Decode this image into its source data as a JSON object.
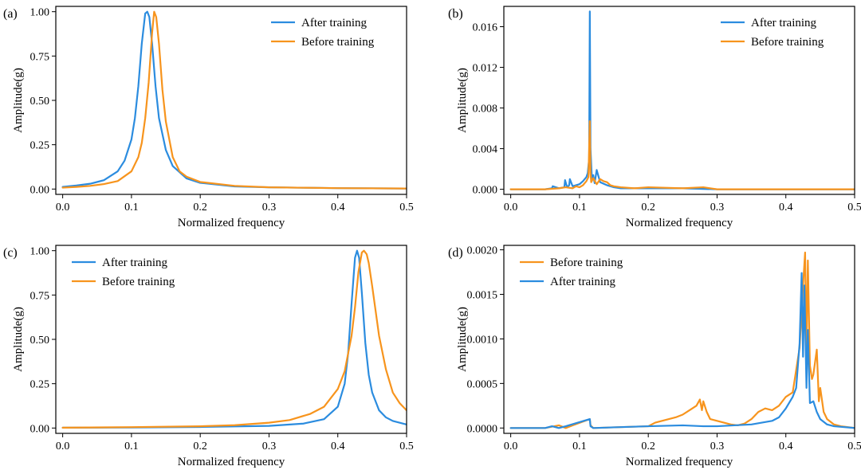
{
  "chart_data": [
    {
      "panel": "(a)",
      "type": "line",
      "xlabel": "Normalized frequency",
      "ylabel": "Amplitude(g)",
      "xlim": [
        -0.01,
        0.5
      ],
      "ylim": [
        -0.03,
        1.03
      ],
      "xticks": [
        0.0,
        0.1,
        0.2,
        0.3,
        0.4,
        0.5
      ],
      "xtick_labels": [
        "0.0",
        "0.1",
        "0.2",
        "0.3",
        "0.4",
        "0.5"
      ],
      "yticks": [
        0.0,
        0.25,
        0.5,
        0.75,
        1.0
      ],
      "ytick_labels": [
        "0.00",
        "0.25",
        "0.50",
        "0.75",
        "1.00"
      ],
      "legend_position": "top-right",
      "series": [
        {
          "name": "After training",
          "color": "#2b8cdf",
          "x": [
            0.0,
            0.02,
            0.04,
            0.06,
            0.08,
            0.09,
            0.1,
            0.105,
            0.11,
            0.115,
            0.12,
            0.123,
            0.126,
            0.13,
            0.135,
            0.14,
            0.15,
            0.16,
            0.18,
            0.2,
            0.25,
            0.3,
            0.4,
            0.5
          ],
          "y": [
            0.012,
            0.02,
            0.03,
            0.05,
            0.1,
            0.16,
            0.28,
            0.4,
            0.58,
            0.82,
            0.99,
            1.0,
            0.97,
            0.82,
            0.58,
            0.4,
            0.22,
            0.13,
            0.06,
            0.035,
            0.015,
            0.01,
            0.005,
            0.003
          ]
        },
        {
          "name": "Before training",
          "color": "#f7941d",
          "x": [
            0.0,
            0.02,
            0.04,
            0.06,
            0.08,
            0.1,
            0.11,
            0.115,
            0.12,
            0.125,
            0.13,
            0.133,
            0.136,
            0.14,
            0.145,
            0.15,
            0.16,
            0.17,
            0.18,
            0.2,
            0.25,
            0.3,
            0.4,
            0.5
          ],
          "y": [
            0.008,
            0.012,
            0.018,
            0.028,
            0.045,
            0.1,
            0.18,
            0.26,
            0.4,
            0.6,
            0.88,
            1.0,
            0.97,
            0.82,
            0.56,
            0.38,
            0.18,
            0.1,
            0.07,
            0.04,
            0.018,
            0.01,
            0.005,
            0.003
          ]
        }
      ]
    },
    {
      "panel": "(b)",
      "type": "line",
      "xlabel": "Normalized frequency",
      "ylabel": "Amplitude(g)",
      "xlim": [
        -0.01,
        0.5
      ],
      "ylim": [
        -0.0005,
        0.018
      ],
      "xticks": [
        0.0,
        0.1,
        0.2,
        0.3,
        0.4,
        0.5
      ],
      "xtick_labels": [
        "0.0",
        "0.1",
        "0.2",
        "0.3",
        "0.4",
        "0.5"
      ],
      "yticks": [
        0.0,
        0.004,
        0.008,
        0.012,
        0.016
      ],
      "ytick_labels": [
        "0.000",
        "0.004",
        "0.008",
        "0.012",
        "0.016"
      ],
      "legend_position": "top-right",
      "series": [
        {
          "name": "After training",
          "color": "#2b8cdf",
          "x": [
            0.0,
            0.05,
            0.06,
            0.061,
            0.07,
            0.078,
            0.079,
            0.082,
            0.085,
            0.086,
            0.09,
            0.1,
            0.105,
            0.11,
            0.112,
            0.114,
            0.115,
            0.116,
            0.118,
            0.12,
            0.122,
            0.125,
            0.13,
            0.14,
            0.15,
            0.16,
            0.2,
            0.25,
            0.3,
            0.4,
            0.5
          ],
          "y": [
            0.0,
            0.0,
            0.0001,
            0.0003,
            0.0001,
            0.0002,
            0.0009,
            0.0002,
            0.0004,
            0.001,
            0.0003,
            0.0005,
            0.0008,
            0.0012,
            0.0016,
            0.003,
            0.0175,
            0.004,
            0.001,
            0.0014,
            0.0006,
            0.0019,
            0.0007,
            0.0004,
            0.0002,
            0.0001,
            0.0001,
            0.0001,
            0.0,
            0.0,
            0.0
          ]
        },
        {
          "name": "Before training",
          "color": "#f7941d",
          "x": [
            0.0,
            0.05,
            0.07,
            0.08,
            0.09,
            0.095,
            0.1,
            0.105,
            0.11,
            0.113,
            0.115,
            0.116,
            0.117,
            0.12,
            0.125,
            0.13,
            0.135,
            0.14,
            0.145,
            0.15,
            0.16,
            0.18,
            0.2,
            0.25,
            0.28,
            0.3,
            0.4,
            0.5
          ],
          "y": [
            0.0,
            0.0,
            0.0001,
            0.0002,
            0.0001,
            0.0003,
            0.0002,
            0.0004,
            0.0008,
            0.0012,
            0.0067,
            0.0016,
            0.0007,
            0.0011,
            0.0005,
            0.001,
            0.0008,
            0.0007,
            0.0004,
            0.0003,
            0.0002,
            0.0001,
            0.0002,
            0.0001,
            0.0002,
            0.0,
            0.0,
            0.0
          ]
        }
      ]
    },
    {
      "panel": "(c)",
      "type": "line",
      "xlabel": "Normalized frequency",
      "ylabel": "Amplitude(g)",
      "xlim": [
        -0.01,
        0.5
      ],
      "ylim": [
        -0.03,
        1.03
      ],
      "xticks": [
        0.0,
        0.1,
        0.2,
        0.3,
        0.4,
        0.5
      ],
      "xtick_labels": [
        "0.0",
        "0.1",
        "0.2",
        "0.3",
        "0.4",
        "0.5"
      ],
      "yticks": [
        0.0,
        0.25,
        0.5,
        0.75,
        1.0
      ],
      "ytick_labels": [
        "0.00",
        "0.25",
        "0.50",
        "0.75",
        "1.00"
      ],
      "legend_position": "top-left",
      "series": [
        {
          "name": "After training",
          "color": "#2b8cdf",
          "x": [
            0.0,
            0.1,
            0.2,
            0.3,
            0.35,
            0.38,
            0.4,
            0.41,
            0.415,
            0.42,
            0.425,
            0.428,
            0.431,
            0.435,
            0.44,
            0.445,
            0.45,
            0.46,
            0.47,
            0.48,
            0.5
          ],
          "y": [
            0.002,
            0.003,
            0.006,
            0.012,
            0.025,
            0.05,
            0.12,
            0.25,
            0.42,
            0.7,
            0.96,
            1.0,
            0.96,
            0.76,
            0.48,
            0.3,
            0.2,
            0.1,
            0.06,
            0.04,
            0.02
          ]
        },
        {
          "name": "Before training",
          "color": "#f7941d",
          "x": [
            0.0,
            0.1,
            0.2,
            0.25,
            0.3,
            0.33,
            0.36,
            0.38,
            0.4,
            0.41,
            0.42,
            0.425,
            0.43,
            0.435,
            0.438,
            0.442,
            0.445,
            0.45,
            0.46,
            0.47,
            0.48,
            0.49,
            0.5
          ],
          "y": [
            0.002,
            0.005,
            0.01,
            0.016,
            0.03,
            0.045,
            0.08,
            0.12,
            0.22,
            0.32,
            0.52,
            0.68,
            0.88,
            0.99,
            1.0,
            0.98,
            0.93,
            0.8,
            0.52,
            0.33,
            0.2,
            0.14,
            0.1
          ]
        }
      ]
    },
    {
      "panel": "(d)",
      "type": "line",
      "xlabel": "Normalized frequency",
      "ylabel": "Amplitude(g)",
      "xlim": [
        -0.01,
        0.5
      ],
      "ylim": [
        -6e-05,
        0.00205
      ],
      "xticks": [
        0.0,
        0.1,
        0.2,
        0.3,
        0.4,
        0.5
      ],
      "xtick_labels": [
        "0.0",
        "0.1",
        "0.2",
        "0.3",
        "0.4",
        "0.5"
      ],
      "yticks": [
        0.0,
        0.0005,
        0.001,
        0.0015,
        0.002
      ],
      "ytick_labels": [
        "0.0000",
        "0.0005",
        "0.0010",
        "0.0015",
        "0.0020"
      ],
      "legend_position": "top-left",
      "series": [
        {
          "name": "Before training",
          "color": "#f7941d",
          "x": [
            0.0,
            0.05,
            0.07,
            0.08,
            0.09,
            0.115,
            0.116,
            0.12,
            0.2,
            0.21,
            0.22,
            0.23,
            0.24,
            0.25,
            0.26,
            0.27,
            0.275,
            0.278,
            0.28,
            0.285,
            0.29,
            0.3,
            0.31,
            0.32,
            0.33,
            0.34,
            0.35,
            0.36,
            0.37,
            0.38,
            0.39,
            0.4,
            0.41,
            0.42,
            0.425,
            0.428,
            0.43,
            0.432,
            0.435,
            0.438,
            0.44,
            0.445,
            0.448,
            0.45,
            0.455,
            0.46,
            0.47,
            0.48,
            0.5
          ],
          "y": [
            0.0,
            0.0,
            3e-05,
            0.0,
            3e-05,
            0.0001,
            3e-05,
            0.0,
            2e-05,
            6e-05,
            8e-05,
            0.0001,
            0.00012,
            0.00015,
            0.0002,
            0.00025,
            0.00032,
            0.0002,
            0.0003,
            0.00018,
            0.0001,
            8e-05,
            6e-05,
            4e-05,
            3e-05,
            5e-05,
            0.0001,
            0.00018,
            0.00022,
            0.0002,
            0.00025,
            0.00035,
            0.0004,
            0.0009,
            0.0016,
            0.00197,
            0.00085,
            0.00188,
            0.0007,
            0.00055,
            0.0006,
            0.00088,
            0.0003,
            0.00045,
            0.00018,
            0.0001,
            4e-05,
            2e-05,
            0.0
          ]
        },
        {
          "name": "After training",
          "color": "#2b8cdf",
          "x": [
            0.0,
            0.05,
            0.06,
            0.07,
            0.08,
            0.115,
            0.116,
            0.12,
            0.2,
            0.25,
            0.28,
            0.3,
            0.35,
            0.38,
            0.39,
            0.4,
            0.41,
            0.415,
            0.42,
            0.423,
            0.425,
            0.427,
            0.43,
            0.432,
            0.435,
            0.44,
            0.445,
            0.45,
            0.46,
            0.47,
            0.5
          ],
          "y": [
            0.0,
            0.0,
            2e-05,
            0.0,
            2e-05,
            0.0001,
            2e-05,
            0.0,
            2e-05,
            3e-05,
            2e-05,
            2e-05,
            4e-05,
            8e-05,
            0.00012,
            0.00022,
            0.00035,
            0.00045,
            0.00095,
            0.00174,
            0.0008,
            0.0016,
            0.00045,
            0.0011,
            0.00028,
            0.0003,
            0.00018,
            0.0001,
            4e-05,
            2e-05,
            0.0
          ]
        }
      ]
    }
  ]
}
